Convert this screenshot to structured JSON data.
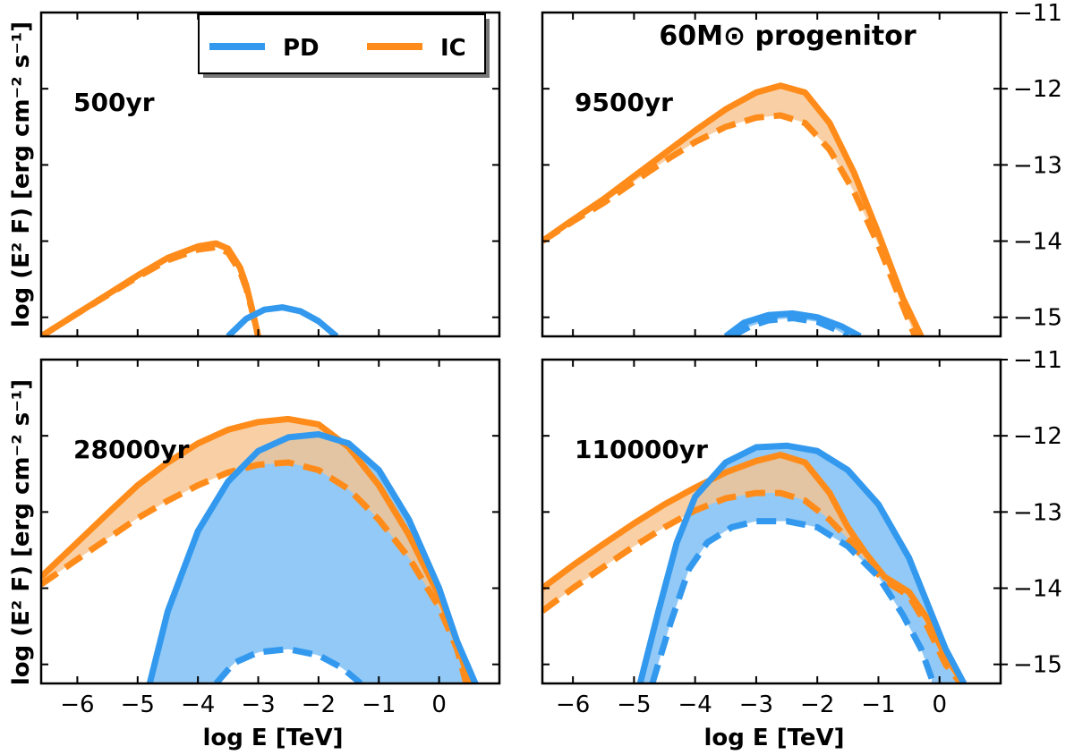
{
  "figure": {
    "superscript_title": "60M⊙ progenitor",
    "y_axis_title": "log (E² F) [erg cm⁻² s⁻¹]",
    "x_axis_title": "log E [TeV]",
    "legend": [
      {
        "label": "PD",
        "color": "#3399ee"
      },
      {
        "label": "IC",
        "color": "#ff8c1a"
      }
    ]
  },
  "colors": {
    "pd": "#3399ee",
    "pd_fill": "#8cc6f5",
    "ic": "#ff8c1a",
    "ic_fill": "#f8c48e",
    "overlap_fill": "#c2a98a"
  },
  "chart_data": [
    {
      "type": "line",
      "panel_label": "500yr",
      "xlim": [
        -6.6,
        1.0
      ],
      "ylim": [
        -15.25,
        -11.0
      ],
      "x_ticks": [
        "−6",
        "−5",
        "−4",
        "−3",
        "−2",
        "−1",
        "0"
      ],
      "y_ticks": [
        "−11",
        "−12",
        "−13",
        "−14",
        "−15"
      ],
      "series": [
        {
          "name": "IC",
          "style": "solid",
          "x": [
            -6.6,
            -6.0,
            -5.5,
            -5.0,
            -4.5,
            -4.0,
            -3.7,
            -3.5,
            -3.3,
            -3.2,
            -3.1,
            -3.0
          ],
          "y": [
            -15.25,
            -14.95,
            -14.7,
            -14.45,
            -14.22,
            -14.07,
            -14.03,
            -14.1,
            -14.35,
            -14.58,
            -14.9,
            -15.25
          ]
        },
        {
          "name": "IC",
          "style": "dashed",
          "x": [
            -6.6,
            -6.0,
            -5.5,
            -5.0,
            -4.5,
            -4.0,
            -3.7,
            -3.5,
            -3.3,
            -3.2,
            -3.1,
            -3.0
          ],
          "y": [
            -15.25,
            -14.95,
            -14.71,
            -14.47,
            -14.25,
            -14.11,
            -14.08,
            -14.15,
            -14.4,
            -14.62,
            -14.92,
            -15.25
          ]
        },
        {
          "name": "PD",
          "style": "solid",
          "x": [
            -3.5,
            -3.2,
            -2.9,
            -2.6,
            -2.3,
            -2.0,
            -1.7
          ],
          "y": [
            -15.25,
            -15.02,
            -14.9,
            -14.87,
            -14.92,
            -15.05,
            -15.25
          ]
        }
      ]
    },
    {
      "type": "line",
      "panel_label": "9500yr",
      "xlim": [
        -6.5,
        1.0
      ],
      "ylim": [
        -15.25,
        -11.0
      ],
      "x_ticks": [
        "−6",
        "−5",
        "−4",
        "−3",
        "−2",
        "−1",
        "0"
      ],
      "y_ticks": [
        "−11",
        "−12",
        "−13",
        "−14",
        "−15"
      ],
      "series": [
        {
          "name": "IC",
          "style": "solid",
          "x": [
            -6.5,
            -6.0,
            -5.5,
            -5.0,
            -4.5,
            -4.0,
            -3.5,
            -3.0,
            -2.6,
            -2.2,
            -1.8,
            -1.4,
            -1.0,
            -0.6,
            -0.3
          ],
          "y": [
            -14.0,
            -13.72,
            -13.45,
            -13.15,
            -12.85,
            -12.55,
            -12.27,
            -12.05,
            -11.96,
            -12.05,
            -12.45,
            -13.1,
            -13.9,
            -14.75,
            -15.25
          ]
        },
        {
          "name": "IC",
          "style": "dashed",
          "x": [
            -6.5,
            -6.0,
            -5.5,
            -5.0,
            -4.5,
            -4.0,
            -3.5,
            -3.0,
            -2.6,
            -2.2,
            -1.8,
            -1.4,
            -1.0,
            -0.6,
            -0.4
          ],
          "y": [
            -14.0,
            -13.74,
            -13.5,
            -13.22,
            -12.95,
            -12.7,
            -12.5,
            -12.38,
            -12.35,
            -12.45,
            -12.8,
            -13.35,
            -14.05,
            -14.85,
            -15.25
          ]
        },
        {
          "name": "PD",
          "style": "solid",
          "x": [
            -3.5,
            -3.2,
            -2.8,
            -2.4,
            -2.0,
            -1.6,
            -1.3
          ],
          "y": [
            -15.25,
            -15.07,
            -14.97,
            -14.95,
            -15.0,
            -15.12,
            -15.25
          ]
        },
        {
          "name": "PD",
          "style": "dashed",
          "x": [
            -3.4,
            -3.1,
            -2.8,
            -2.4,
            -2.0,
            -1.7,
            -1.5
          ],
          "y": [
            -15.25,
            -15.12,
            -15.04,
            -15.01,
            -15.06,
            -15.16,
            -15.25
          ]
        }
      ]
    },
    {
      "type": "line",
      "panel_label": "28000yr",
      "xlim": [
        -6.6,
        1.0
      ],
      "ylim": [
        -15.25,
        -11.0
      ],
      "x_ticks": [
        "−6",
        "−5",
        "−4",
        "−3",
        "−2",
        "−1",
        "0"
      ],
      "y_ticks": [
        "−11",
        "−12",
        "−13",
        "−14",
        "−15"
      ],
      "series": [
        {
          "name": "IC",
          "style": "solid",
          "x": [
            -6.6,
            -6.0,
            -5.5,
            -5.0,
            -4.5,
            -4.0,
            -3.5,
            -3.0,
            -2.5,
            -2.0,
            -1.5,
            -1.0,
            -0.5,
            0.0,
            0.3,
            0.5
          ],
          "y": [
            -13.85,
            -13.4,
            -13.02,
            -12.65,
            -12.35,
            -12.1,
            -11.92,
            -11.82,
            -11.78,
            -11.85,
            -12.15,
            -12.65,
            -13.3,
            -14.1,
            -14.7,
            -15.25
          ]
        },
        {
          "name": "IC",
          "style": "dashed",
          "x": [
            -6.6,
            -6.0,
            -5.5,
            -5.0,
            -4.5,
            -4.0,
            -3.5,
            -3.0,
            -2.5,
            -2.0,
            -1.5,
            -1.0,
            -0.5,
            0.0,
            0.3,
            0.45
          ],
          "y": [
            -13.95,
            -13.62,
            -13.35,
            -13.08,
            -12.85,
            -12.65,
            -12.48,
            -12.38,
            -12.35,
            -12.45,
            -12.7,
            -13.1,
            -13.6,
            -14.25,
            -14.8,
            -15.25
          ]
        },
        {
          "name": "PD",
          "style": "solid",
          "x": [
            -4.8,
            -4.5,
            -4.0,
            -3.5,
            -3.0,
            -2.5,
            -2.0,
            -1.5,
            -1.0,
            -0.5,
            0.0,
            0.3,
            0.6
          ],
          "y": [
            -15.25,
            -14.3,
            -13.25,
            -12.6,
            -12.2,
            -12.02,
            -11.98,
            -12.1,
            -12.45,
            -13.1,
            -14.0,
            -14.7,
            -15.25
          ]
        },
        {
          "name": "PD",
          "style": "dashed",
          "x": [
            -3.7,
            -3.4,
            -3.0,
            -2.5,
            -2.0,
            -1.6,
            -1.3
          ],
          "y": [
            -15.25,
            -14.98,
            -14.84,
            -14.8,
            -14.88,
            -15.05,
            -15.25
          ]
        }
      ]
    },
    {
      "type": "line",
      "panel_label": "110000yr",
      "xlim": [
        -6.5,
        1.0
      ],
      "ylim": [
        -15.25,
        -11.0
      ],
      "x_ticks": [
        "−6",
        "−5",
        "−4",
        "−3",
        "−2",
        "−1",
        "0"
      ],
      "y_ticks": [
        "−11",
        "−12",
        "−13",
        "−14",
        "−15"
      ],
      "series": [
        {
          "name": "IC",
          "style": "solid",
          "x": [
            -6.5,
            -6.0,
            -5.5,
            -5.0,
            -4.5,
            -4.0,
            -3.5,
            -3.0,
            -2.6,
            -2.2,
            -1.8,
            -1.5,
            -1.2,
            -0.9,
            -0.5,
            -0.2,
            0.1,
            0.4
          ],
          "y": [
            -14.0,
            -13.7,
            -13.42,
            -13.15,
            -12.9,
            -12.68,
            -12.48,
            -12.33,
            -12.25,
            -12.35,
            -12.75,
            -13.2,
            -13.55,
            -13.85,
            -14.05,
            -14.4,
            -14.9,
            -15.25
          ]
        },
        {
          "name": "IC",
          "style": "dashed",
          "x": [
            -6.5,
            -6.0,
            -5.5,
            -5.0,
            -4.5,
            -4.0,
            -3.5,
            -3.0,
            -2.6,
            -2.2,
            -1.8,
            -1.5,
            -1.2,
            -0.9,
            -0.5,
            -0.2,
            0.1,
            0.35
          ],
          "y": [
            -14.3,
            -14.0,
            -13.72,
            -13.45,
            -13.2,
            -12.98,
            -12.82,
            -12.75,
            -12.75,
            -12.85,
            -13.1,
            -13.35,
            -13.65,
            -13.9,
            -14.1,
            -14.5,
            -15.0,
            -15.25
          ]
        },
        {
          "name": "PD",
          "style": "solid",
          "x": [
            -4.9,
            -4.6,
            -4.3,
            -4.0,
            -3.5,
            -3.0,
            -2.5,
            -2.0,
            -1.5,
            -1.0,
            -0.5,
            -0.2,
            0.1,
            0.4
          ],
          "y": [
            -15.25,
            -14.3,
            -13.4,
            -12.8,
            -12.35,
            -12.15,
            -12.13,
            -12.2,
            -12.45,
            -12.9,
            -13.6,
            -14.2,
            -14.8,
            -15.25
          ]
        },
        {
          "name": "PD",
          "style": "dashed",
          "x": [
            -4.7,
            -4.4,
            -4.1,
            -3.8,
            -3.4,
            -3.0,
            -2.5,
            -2.0,
            -1.5,
            -1.0,
            -0.6,
            -0.3,
            -0.1
          ],
          "y": [
            -15.25,
            -14.45,
            -13.75,
            -13.4,
            -13.2,
            -13.12,
            -13.12,
            -13.2,
            -13.45,
            -13.85,
            -14.35,
            -14.8,
            -15.25
          ]
        }
      ]
    }
  ]
}
